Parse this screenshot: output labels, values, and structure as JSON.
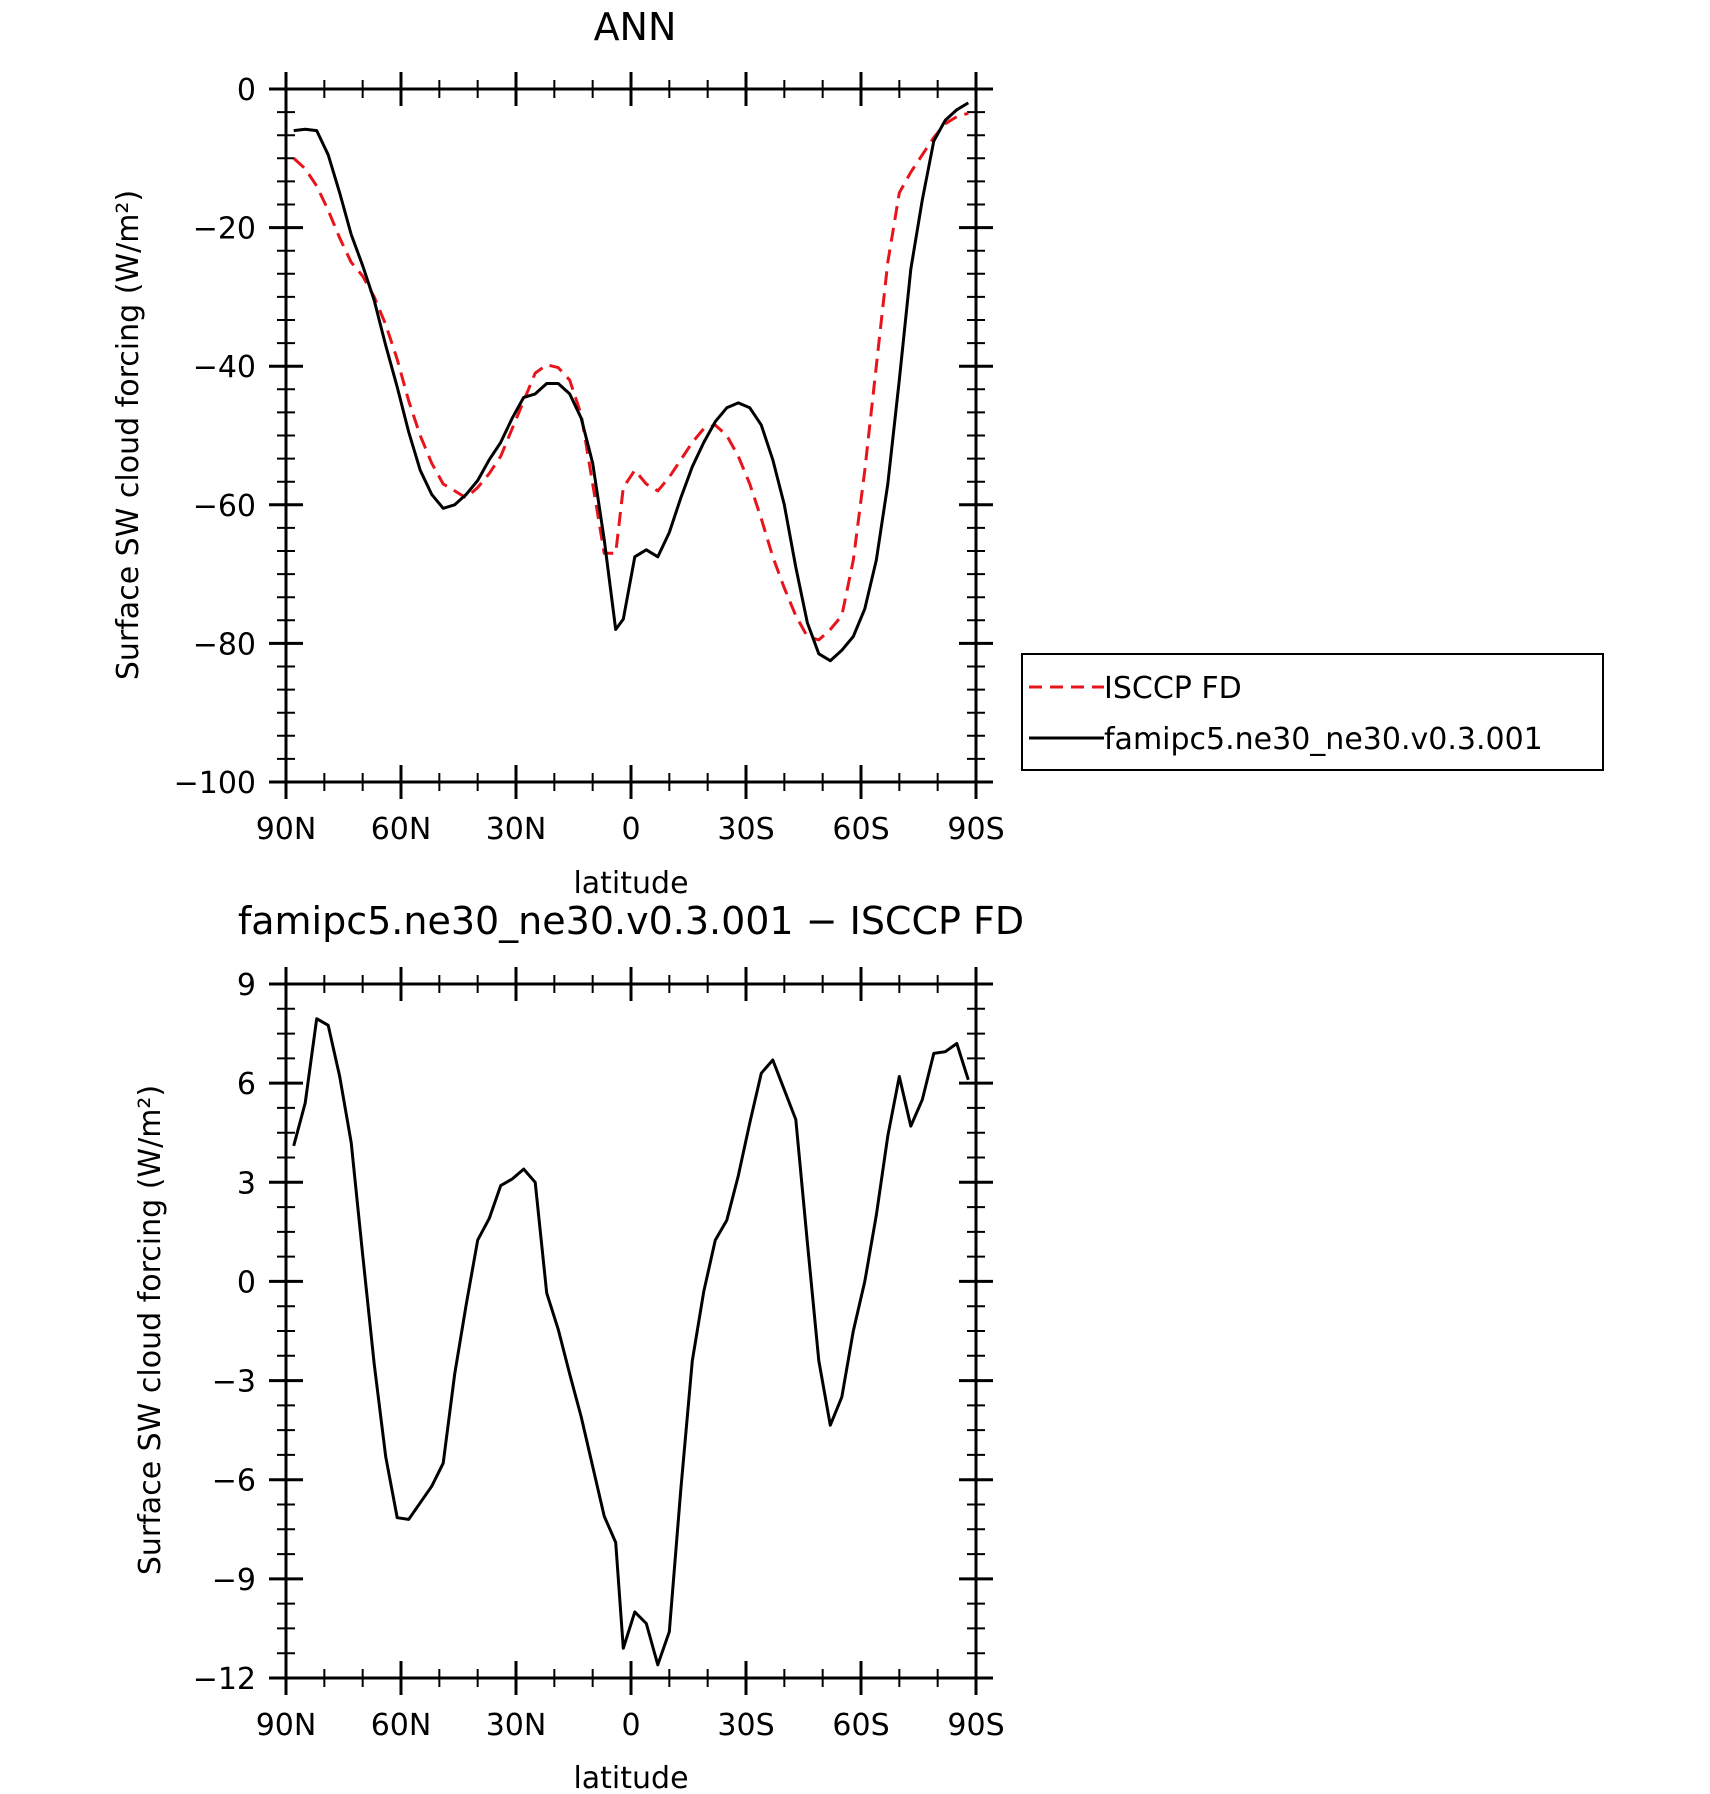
{
  "chart_data": [
    {
      "type": "line",
      "title": "ANN",
      "xlabel": "latitude",
      "ylabel": "Surface SW cloud forcing (W/m²)",
      "xlim": [
        -90,
        90
      ],
      "ylim": [
        -100,
        0
      ],
      "x_tick_values": [
        -90,
        -60,
        -30,
        0,
        30,
        60,
        90
      ],
      "x_tick_labels": [
        "90N",
        "60N",
        "30N",
        "0",
        "30S",
        "60S",
        "90S"
      ],
      "y_tick_values": [
        0,
        -20,
        -40,
        -60,
        -80,
        -100
      ],
      "y_tick_labels": [
        "0",
        "−20",
        "−40",
        "−60",
        "−80",
        "−100"
      ],
      "grid": false,
      "legend": {
        "position": "right",
        "entries": [
          "ISCCP FD",
          "famipc5.ne30_ne30.v0.3.001"
        ]
      },
      "series": [
        {
          "name": "ISCCP FD",
          "color": "#e8141c",
          "dash": "dashed",
          "points": [
            [
              -88,
              -10
            ],
            [
              -85,
              -11.5
            ],
            [
              -82,
              -14
            ],
            [
              -79,
              -17.5
            ],
            [
              -76,
              -21.5
            ],
            [
              -73,
              -25
            ],
            [
              -70,
              -27
            ],
            [
              -67,
              -30
            ],
            [
              -64,
              -34
            ],
            [
              -61,
              -39
            ],
            [
              -58,
              -45
            ],
            [
              -55,
              -50
            ],
            [
              -52,
              -54
            ],
            [
              -49,
              -57
            ],
            [
              -46,
              -58
            ],
            [
              -43,
              -59
            ],
            [
              -40,
              -57.5
            ],
            [
              -37,
              -55.5
            ],
            [
              -34,
              -53
            ],
            [
              -31,
              -49
            ],
            [
              -28,
              -45
            ],
            [
              -25,
              -41
            ],
            [
              -22,
              -39.8
            ],
            [
              -19,
              -40.2
            ],
            [
              -16,
              -42
            ],
            [
              -13,
              -47
            ],
            [
              -10,
              -57
            ],
            [
              -7,
              -67
            ],
            [
              -4,
              -67
            ],
            [
              -2,
              -57.5
            ],
            [
              1,
              -55
            ],
            [
              4,
              -57
            ],
            [
              7,
              -58
            ],
            [
              10,
              -56
            ],
            [
              13,
              -53.5
            ],
            [
              16,
              -51
            ],
            [
              19,
              -49
            ],
            [
              22,
              -48.5
            ],
            [
              25,
              -50
            ],
            [
              28,
              -53
            ],
            [
              31,
              -57
            ],
            [
              34,
              -62
            ],
            [
              37,
              -67.5
            ],
            [
              40,
              -72
            ],
            [
              43,
              -76
            ],
            [
              46,
              -79
            ],
            [
              49,
              -79.5
            ],
            [
              52,
              -78
            ],
            [
              55,
              -76
            ],
            [
              58,
              -68
            ],
            [
              61,
              -55
            ],
            [
              64,
              -40
            ],
            [
              67,
              -25
            ],
            [
              70,
              -15
            ],
            [
              73,
              -12
            ],
            [
              76,
              -9.5
            ],
            [
              79,
              -7
            ],
            [
              82,
              -5
            ],
            [
              85,
              -4
            ],
            [
              88,
              -3.5
            ]
          ]
        },
        {
          "name": "famipc5.ne30_ne30.v0.3.001",
          "color": "#000000",
          "dash": "solid",
          "points": [
            [
              -88,
              -6
            ],
            [
              -85,
              -5.8
            ],
            [
              -82,
              -6
            ],
            [
              -79,
              -9.5
            ],
            [
              -76,
              -15
            ],
            [
              -73,
              -21
            ],
            [
              -70,
              -25.5
            ],
            [
              -67,
              -30.5
            ],
            [
              -64,
              -37
            ],
            [
              -61,
              -43
            ],
            [
              -58,
              -49.5
            ],
            [
              -55,
              -55
            ],
            [
              -52,
              -58.5
            ],
            [
              -49,
              -60.5
            ],
            [
              -46,
              -60
            ],
            [
              -43,
              -58.5
            ],
            [
              -40,
              -56.5
            ],
            [
              -37,
              -53.5
            ],
            [
              -34,
              -51
            ],
            [
              -31,
              -47.5
            ],
            [
              -28,
              -44.5
            ],
            [
              -25,
              -44
            ],
            [
              -22,
              -42.5
            ],
            [
              -19,
              -42.5
            ],
            [
              -16,
              -44
            ],
            [
              -13,
              -47.5
            ],
            [
              -10,
              -54
            ],
            [
              -7,
              -65
            ],
            [
              -4,
              -78
            ],
            [
              -2,
              -76.5
            ],
            [
              1,
              -67.5
            ],
            [
              4,
              -66.5
            ],
            [
              7,
              -67.5
            ],
            [
              10,
              -64
            ],
            [
              13,
              -59
            ],
            [
              16,
              -54.5
            ],
            [
              19,
              -51
            ],
            [
              22,
              -48
            ],
            [
              25,
              -46
            ],
            [
              28,
              -45.3
            ],
            [
              31,
              -46
            ],
            [
              34,
              -48.5
            ],
            [
              37,
              -53.5
            ],
            [
              40,
              -60
            ],
            [
              43,
              -69
            ],
            [
              46,
              -77
            ],
            [
              49,
              -81.5
            ],
            [
              52,
              -82.5
            ],
            [
              55,
              -81
            ],
            [
              58,
              -79
            ],
            [
              61,
              -75
            ],
            [
              64,
              -68
            ],
            [
              67,
              -57
            ],
            [
              70,
              -42
            ],
            [
              73,
              -26
            ],
            [
              76,
              -16
            ],
            [
              79,
              -7.5
            ],
            [
              82,
              -4.5
            ],
            [
              85,
              -3
            ],
            [
              88,
              -2
            ]
          ]
        }
      ]
    },
    {
      "type": "line",
      "title": "famipc5.ne30_ne30.v0.3.001 − ISCCP FD",
      "xlabel": "latitude",
      "ylabel": "Surface SW cloud forcing (W/m²)",
      "xlim": [
        -90,
        90
      ],
      "ylim": [
        -12,
        9
      ],
      "x_tick_values": [
        -90,
        -60,
        -30,
        0,
        30,
        60,
        90
      ],
      "x_tick_labels": [
        "90N",
        "60N",
        "30N",
        "0",
        "30S",
        "60S",
        "90S"
      ],
      "y_tick_values": [
        9,
        6,
        3,
        0,
        -3,
        -6,
        -9,
        -12
      ],
      "y_tick_labels": [
        "9",
        "6",
        "3",
        "0",
        "−3",
        "−6",
        "−9",
        "−12"
      ],
      "grid": false,
      "series": [
        {
          "color": "#000000",
          "dash": "solid",
          "points": [
            [
              -88,
              4.1
            ],
            [
              -85,
              5.4
            ],
            [
              -82,
              7.95
            ],
            [
              -79,
              7.75
            ],
            [
              -76,
              6.2
            ],
            [
              -73,
              4.2
            ],
            [
              -70,
              0.8
            ],
            [
              -67,
              -2.5
            ],
            [
              -64,
              -5.3
            ],
            [
              -61,
              -7.15
            ],
            [
              -58,
              -7.2
            ],
            [
              -55,
              -6.7
            ],
            [
              -52,
              -6.2
            ],
            [
              -49,
              -5.5
            ],
            [
              -46,
              -2.8
            ],
            [
              -43,
              -0.7
            ],
            [
              -40,
              1.25
            ],
            [
              -37,
              1.9
            ],
            [
              -34,
              2.9
            ],
            [
              -31,
              3.1
            ],
            [
              -28,
              3.4
            ],
            [
              -25,
              3.0
            ],
            [
              -22,
              -0.35
            ],
            [
              -19,
              -1.45
            ],
            [
              -16,
              -2.8
            ],
            [
              -13,
              -4.1
            ],
            [
              -10,
              -5.6
            ],
            [
              -7,
              -7.1
            ],
            [
              -4,
              -7.9
            ],
            [
              -2,
              -11.1
            ],
            [
              1,
              -10.0
            ],
            [
              4,
              -10.35
            ],
            [
              7,
              -11.6
            ],
            [
              10,
              -10.6
            ],
            [
              13,
              -6.3
            ],
            [
              16,
              -2.4
            ],
            [
              19,
              -0.3
            ],
            [
              22,
              1.25
            ],
            [
              25,
              1.85
            ],
            [
              28,
              3.2
            ],
            [
              31,
              4.8
            ],
            [
              34,
              6.3
            ],
            [
              37,
              6.7
            ],
            [
              40,
              5.8
            ],
            [
              43,
              4.9
            ],
            [
              46,
              1.2
            ],
            [
              49,
              -2.4
            ],
            [
              52,
              -4.35
            ],
            [
              55,
              -3.5
            ],
            [
              58,
              -1.5
            ],
            [
              61,
              0
            ],
            [
              64,
              2.0
            ],
            [
              67,
              4.4
            ],
            [
              70,
              6.2
            ],
            [
              73,
              4.7
            ],
            [
              76,
              5.5
            ],
            [
              79,
              6.9
            ],
            [
              82,
              6.95
            ],
            [
              85,
              7.2
            ],
            [
              88,
              6.1
            ]
          ]
        }
      ]
    }
  ]
}
